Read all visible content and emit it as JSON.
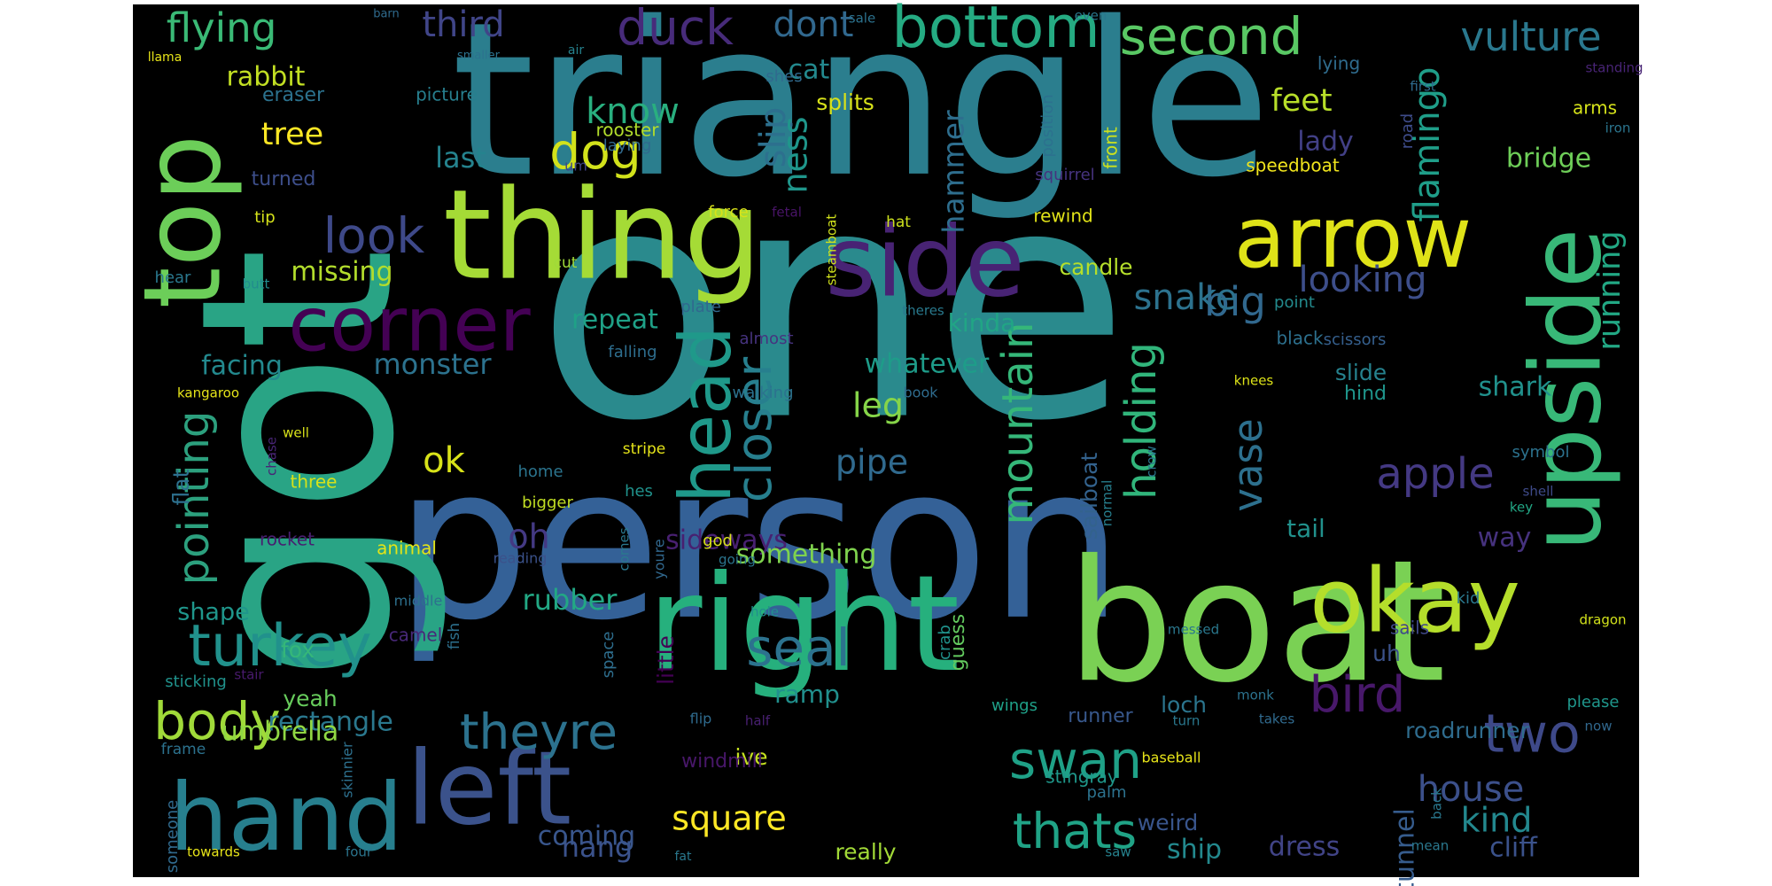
{
  "background": "#000000",
  "words": [
    {
      "text": "one",
      "color": "#2a8a8d"
    },
    {
      "text": "triangle",
      "color": "#2b7e8e"
    },
    {
      "text": "person",
      "color": "#346197"
    },
    {
      "text": "got",
      "color": "#29a485"
    },
    {
      "text": "boat",
      "color": "#7ad154"
    },
    {
      "text": "right",
      "color": "#26b07d"
    },
    {
      "text": "top",
      "color": "#6cce59"
    },
    {
      "text": "upside",
      "color": "#38b878"
    },
    {
      "text": "thing",
      "color": "#a5db36"
    },
    {
      "text": "side",
      "color": "#482374"
    },
    {
      "text": "okay",
      "color": "#b5de2b"
    },
    {
      "text": "hand",
      "color": "#277f8e"
    },
    {
      "text": "arrow",
      "color": "#dfe318"
    },
    {
      "text": "left",
      "color": "#3b528b"
    },
    {
      "text": "corner",
      "color": "#440154"
    },
    {
      "text": "head",
      "color": "#1f998a"
    },
    {
      "text": "bottom",
      "color": "#25ab82"
    },
    {
      "text": "duck",
      "color": "#472b7a"
    },
    {
      "text": "second",
      "color": "#59c864"
    },
    {
      "text": "turkey",
      "color": "#21918c"
    },
    {
      "text": "dog",
      "color": "#d2e21b"
    },
    {
      "text": "look",
      "color": "#3e4989"
    },
    {
      "text": "body",
      "color": "#a0da39"
    },
    {
      "text": "theyre",
      "color": "#2c728e"
    },
    {
      "text": "two",
      "color": "#3e4989"
    },
    {
      "text": "swan",
      "color": "#1fa187"
    },
    {
      "text": "thats",
      "color": "#20a386"
    },
    {
      "text": "seal",
      "color": "#2c728e"
    },
    {
      "text": "bird",
      "color": "#48186a"
    },
    {
      "text": "apple",
      "color": "#443983"
    },
    {
      "text": "vase",
      "color": "#2d708e"
    },
    {
      "text": "holding",
      "color": "#31b57b"
    },
    {
      "text": "mountain",
      "color": "#35b779"
    },
    {
      "text": "closer",
      "color": "#277f8e"
    },
    {
      "text": "pointing",
      "color": "#2ca07e"
    },
    {
      "text": "flying",
      "color": "#3aba76"
    },
    {
      "text": "vulture",
      "color": "#2a788e"
    },
    {
      "text": "dont",
      "color": "#31688e"
    },
    {
      "text": "third",
      "color": "#404588"
    },
    {
      "text": "house",
      "color": "#3c508b"
    },
    {
      "text": "square",
      "color": "#fde725"
    },
    {
      "text": "hang",
      "color": "#3b528b"
    },
    {
      "text": "big",
      "color": "#31688e"
    },
    {
      "text": "looking",
      "color": "#3d4e8a"
    },
    {
      "text": "snake",
      "color": "#2c728e"
    },
    {
      "text": "oh",
      "color": "#443983"
    },
    {
      "text": "ok",
      "color": "#d8e219"
    },
    {
      "text": "pipe",
      "color": "#306a8e"
    },
    {
      "text": "leg",
      "color": "#86d549"
    },
    {
      "text": "kind",
      "color": "#23888e"
    },
    {
      "text": "know",
      "color": "#29af7f"
    },
    {
      "text": "tree",
      "color": "#fde725"
    },
    {
      "text": "last",
      "color": "#25838e"
    },
    {
      "text": "slip",
      "color": "#2d708e"
    },
    {
      "text": "feet",
      "color": "#b8de29"
    },
    {
      "text": "lady",
      "color": "#424086"
    },
    {
      "text": "ness",
      "color": "#1f968b"
    },
    {
      "text": "cat",
      "color": "#23898e"
    },
    {
      "text": "rabbit",
      "color": "#c2df23"
    },
    {
      "text": "missing",
      "color": "#b2dd2c"
    },
    {
      "text": "repeat",
      "color": "#1fa187"
    },
    {
      "text": "kinda",
      "color": "#21a585"
    },
    {
      "text": "running",
      "color": "#22a884"
    },
    {
      "text": "flamingo",
      "color": "#1f9e89"
    },
    {
      "text": "bridge",
      "color": "#6ece58"
    },
    {
      "text": "hammer",
      "color": "#2e6e8e"
    },
    {
      "text": "whatever",
      "color": "#1e9c89"
    },
    {
      "text": "monster",
      "color": "#2c728e"
    },
    {
      "text": "facing",
      "color": "#23898e"
    },
    {
      "text": "flat",
      "color": "#2d708e"
    },
    {
      "text": "sideways",
      "color": "#482071"
    },
    {
      "text": "rubber",
      "color": "#22a884"
    },
    {
      "text": "little",
      "color": "#440154"
    },
    {
      "text": "something",
      "color": "#7fd34e"
    },
    {
      "text": "tail",
      "color": "#21918c"
    },
    {
      "text": "way",
      "color": "#46327e"
    },
    {
      "text": "shark",
      "color": "#21918c"
    },
    {
      "text": "slide",
      "color": "#26828e"
    },
    {
      "text": "hind",
      "color": "#1f958b"
    },
    {
      "text": "coming",
      "color": "#39568c"
    },
    {
      "text": "rectangle",
      "color": "#2a788e"
    },
    {
      "text": "umbrella",
      "color": "#90d743"
    },
    {
      "text": "yeah",
      "color": "#67cc5c"
    },
    {
      "text": "shape",
      "color": "#1f968b"
    },
    {
      "text": "fox",
      "color": "#35b779"
    },
    {
      "text": "ramp",
      "color": "#21908d"
    },
    {
      "text": "ship",
      "color": "#23898e"
    },
    {
      "text": "dress",
      "color": "#414487"
    },
    {
      "text": "tunnel",
      "color": "#365c8d"
    },
    {
      "text": "cliff",
      "color": "#3b528b"
    },
    {
      "text": "loch",
      "color": "#2b758e"
    },
    {
      "text": "runner",
      "color": "#38588c"
    },
    {
      "text": "really",
      "color": "#a2da37"
    },
    {
      "text": "weird",
      "color": "#39558c"
    },
    {
      "text": "roadrunner",
      "color": "#2f6c8e"
    },
    {
      "text": "uh",
      "color": "#3b528b"
    },
    {
      "text": "sails",
      "color": "#3f4889"
    },
    {
      "text": "ive",
      "color": "#c5e021"
    },
    {
      "text": "windmill",
      "color": "#481769"
    },
    {
      "text": "guess",
      "color": "#63cb5f"
    },
    {
      "text": "crab",
      "color": "#20928c"
    },
    {
      "text": "sailboat",
      "color": "#33628d"
    },
    {
      "text": "wings",
      "color": "#1fa088"
    },
    {
      "text": "stingray",
      "color": "#1f988b"
    },
    {
      "text": "palm",
      "color": "#2c728e"
    },
    {
      "text": "please",
      "color": "#1f968b"
    },
    {
      "text": "splits",
      "color": "#d8e219"
    },
    {
      "text": "speedboat",
      "color": "#f1e51d"
    },
    {
      "text": "candle",
      "color": "#b5de2b"
    },
    {
      "text": "rewind",
      "color": "#e2e418"
    },
    {
      "text": "front",
      "color": "#cae11f"
    },
    {
      "text": "position",
      "color": "#2c718e"
    },
    {
      "text": "squirrel",
      "color": "#46337f"
    },
    {
      "text": "point",
      "color": "#238a8d"
    },
    {
      "text": "black",
      "color": "#2d708e"
    },
    {
      "text": "scissors",
      "color": "#355f8d"
    },
    {
      "text": "knees",
      "color": "#dde318"
    },
    {
      "text": "lying",
      "color": "#2f6c8e"
    },
    {
      "text": "arms",
      "color": "#d5e21a"
    },
    {
      "text": "first",
      "color": "#2f6b8e"
    },
    {
      "text": "road",
      "color": "#3e4c8a"
    },
    {
      "text": "iron",
      "color": "#2b758e"
    },
    {
      "text": "standing",
      "color": "#482475"
    },
    {
      "text": "symbol",
      "color": "#2c728e"
    },
    {
      "text": "shell",
      "color": "#3e4a89"
    },
    {
      "text": "key",
      "color": "#22a785"
    },
    {
      "text": "normal",
      "color": "#277f8e"
    },
    {
      "text": "crow",
      "color": "#2a778e"
    },
    {
      "text": "turned",
      "color": "#3d4e8a"
    },
    {
      "text": "eraser",
      "color": "#2c728e"
    },
    {
      "text": "picture",
      "color": "#277f8e"
    },
    {
      "text": "rooster",
      "color": "#b2dd2c"
    },
    {
      "text": "laying",
      "color": "#306a8e"
    },
    {
      "text": "um",
      "color": "#414487"
    },
    {
      "text": "cut",
      "color": "#a0da39"
    },
    {
      "text": "comes",
      "color": "#2a788e"
    },
    {
      "text": "force",
      "color": "#d8e219"
    },
    {
      "text": "fetal",
      "color": "#481467"
    },
    {
      "text": "hat",
      "color": "#cde11d"
    },
    {
      "text": "steamboat",
      "color": "#d0e11c"
    },
    {
      "text": "theres",
      "color": "#297a8e"
    },
    {
      "text": "plate",
      "color": "#31688e"
    },
    {
      "text": "almost",
      "color": "#46337f"
    },
    {
      "text": "falling",
      "color": "#2e6e8e"
    },
    {
      "text": "walking",
      "color": "#2c728e"
    },
    {
      "text": "book",
      "color": "#2f6c8e"
    },
    {
      "text": "stripe",
      "color": "#e5e419"
    },
    {
      "text": "hes",
      "color": "#20928c"
    },
    {
      "text": "bigger",
      "color": "#c2df23"
    },
    {
      "text": "home",
      "color": "#2b748e"
    },
    {
      "text": "animal",
      "color": "#e2e418"
    },
    {
      "text": "god",
      "color": "#d8e219"
    },
    {
      "text": "going",
      "color": "#2b758e"
    },
    {
      "text": "youre",
      "color": "#31688e"
    },
    {
      "text": "reading",
      "color": "#3b528b"
    },
    {
      "text": "middle",
      "color": "#2d708e"
    },
    {
      "text": "camel",
      "color": "#482878"
    },
    {
      "text": "fish",
      "color": "#2d708e"
    },
    {
      "text": "space",
      "color": "#2e6e8e"
    },
    {
      "text": "hole",
      "color": "#228d8d"
    },
    {
      "text": "messed",
      "color": "#2a788e"
    },
    {
      "text": "flip",
      "color": "#2f6b8e"
    },
    {
      "text": "half",
      "color": "#482071"
    },
    {
      "text": "takes",
      "color": "#306a8e"
    },
    {
      "text": "monk",
      "color": "#2c728e"
    },
    {
      "text": "baseball",
      "color": "#e7e419"
    },
    {
      "text": "turn",
      "color": "#2a788e"
    },
    {
      "text": "back",
      "color": "#2a788e"
    },
    {
      "text": "mean",
      "color": "#2a788e"
    },
    {
      "text": "fat",
      "color": "#2a788e"
    },
    {
      "text": "saw",
      "color": "#26828e"
    },
    {
      "text": "four",
      "color": "#2b758e"
    },
    {
      "text": "towards",
      "color": "#e7e419"
    },
    {
      "text": "someone",
      "color": "#306a8e"
    },
    {
      "text": "skinnier",
      "color": "#2d708e"
    },
    {
      "text": "frame",
      "color": "#2c728e"
    },
    {
      "text": "sticking",
      "color": "#20928c"
    },
    {
      "text": "stair",
      "color": "#481a6c"
    },
    {
      "text": "rocket",
      "color": "#481f70"
    },
    {
      "text": "three",
      "color": "#d5e21a"
    },
    {
      "text": "chase",
      "color": "#482576"
    },
    {
      "text": "well",
      "color": "#d8e219"
    },
    {
      "text": "kangaroo",
      "color": "#e5e419"
    },
    {
      "text": "hear",
      "color": "#2a788e"
    },
    {
      "text": "butt",
      "color": "#228c8d"
    },
    {
      "text": "tip",
      "color": "#d5e21a"
    },
    {
      "text": "barn",
      "color": "#2f6b8e"
    },
    {
      "text": "llama",
      "color": "#e7e419"
    },
    {
      "text": "smaller",
      "color": "#2c728e"
    },
    {
      "text": "air",
      "color": "#26828e"
    },
    {
      "text": "shes",
      "color": "#306a8e"
    },
    {
      "text": "sale",
      "color": "#2c728e"
    },
    {
      "text": "even",
      "color": "#2a788e"
    },
    {
      "text": "kid",
      "color": "#2a788e"
    },
    {
      "text": "dragon",
      "color": "#d2e21b"
    },
    {
      "text": "now",
      "color": "#31688e"
    },
    {
      "text": "nut",
      "color": "#2c728e"
    },
    {
      "text": "think",
      "color": "#d8e219"
    },
    {
      "text": "cake",
      "color": "#2a788e"
    },
    {
      "text": "pot",
      "color": "#2c728e"
    }
  ]
}
